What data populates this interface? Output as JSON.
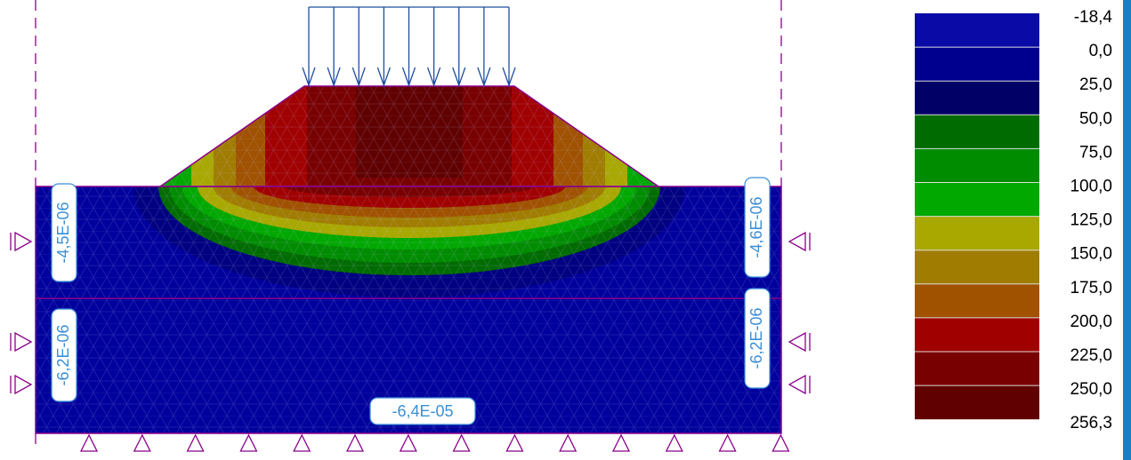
{
  "legend": {
    "labels": [
      "-18,4",
      "0,0",
      "25,0",
      "50,0",
      "75,0",
      "100,0",
      "125,0",
      "150,0",
      "175,0",
      "200,0",
      "225,0",
      "250,0",
      "256,3"
    ],
    "colors": [
      "#0a0aa6",
      "#00008e",
      "#000066",
      "#006b00",
      "#008c00",
      "#00a800",
      "#a8a800",
      "#a07c00",
      "#a05200",
      "#a00000",
      "#780000",
      "#600000"
    ]
  },
  "annotations": [
    "-4,5E-06",
    "-6,2E-06",
    "-4,6E-06",
    "-6,2E-06",
    "-6,4E-05"
  ]
}
